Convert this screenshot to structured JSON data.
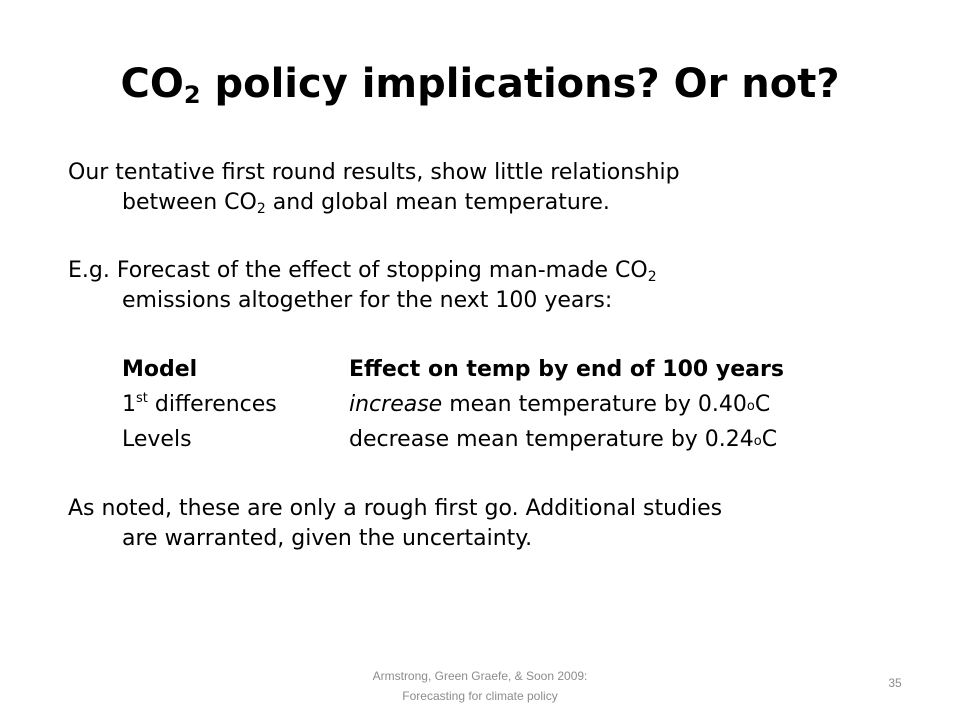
{
  "slide": {
    "title": {
      "part1": "CO",
      "sub": "2",
      "part2": " policy implications? Or not?"
    },
    "para1": {
      "line1": "Our tentative first round results, show little relationship",
      "line2a": "between CO",
      "sub": "2",
      "line2b": " and global mean temperature."
    },
    "para2": {
      "line1a": "E.g. Forecast of the effect of stopping man-made CO",
      "sub": "2",
      "line2": "emissions altogether for the next 100 years:"
    },
    "table": {
      "header_model": "Model",
      "header_effect": "Effect on temp by end of 100 years",
      "rows": [
        {
          "model_a": "1",
          "model_sup": "st",
          "model_b": " differences",
          "effect_em": "increase",
          "effect_text": " mean temperature by 0.40",
          "effect_deg": "o",
          "effect_unit": "C"
        },
        {
          "model_a": "Levels",
          "effect_text": "decrease mean temperature by 0.24",
          "effect_deg": "o",
          "effect_unit": "C"
        }
      ]
    },
    "para3": {
      "line1": "As noted, these are only a rough first go. Additional studies",
      "line2": "are warranted, given the uncertainty."
    },
    "footer": {
      "line1": "Armstrong, Green Graefe, & Soon 2009:",
      "line2": "Forecasting for climate policy"
    },
    "page_number": "35"
  }
}
